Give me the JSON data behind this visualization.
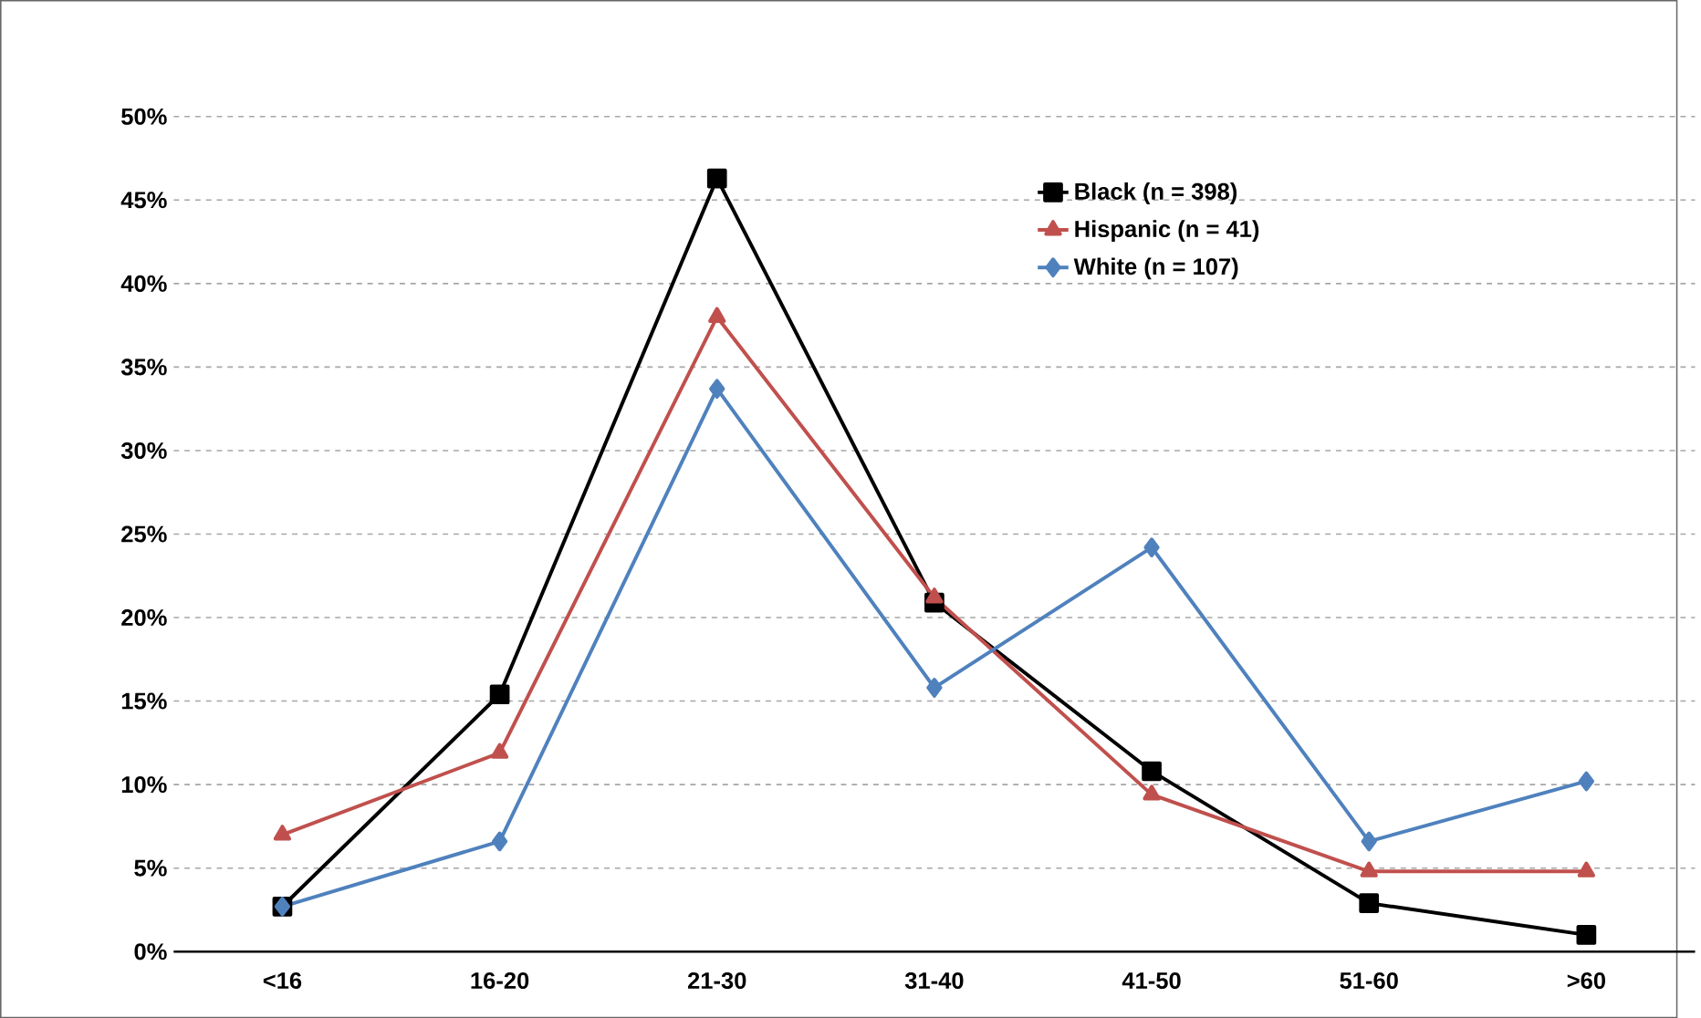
{
  "chart_data": {
    "type": "line",
    "categories": [
      "<16",
      "16-20",
      "21-30",
      "31-40",
      "41-50",
      "51-60",
      ">60"
    ],
    "series": [
      {
        "name": "Black (n = 398)",
        "color": "#000000",
        "marker": "square",
        "values": [
          2.7,
          15.4,
          46.3,
          20.9,
          10.8,
          2.9,
          1.0
        ]
      },
      {
        "name": "Hispanic (n = 41)",
        "color": "#c0504d",
        "marker": "triangle",
        "values": [
          7.0,
          11.9,
          38.0,
          21.2,
          9.4,
          4.8,
          4.8
        ]
      },
      {
        "name": "White (n = 107)",
        "color": "#4f81bd",
        "marker": "diamond",
        "values": [
          2.7,
          6.6,
          33.7,
          15.8,
          24.2,
          6.6,
          10.2
        ]
      }
    ],
    "ylim": [
      0,
      50
    ],
    "yticks": [
      {
        "value": 0,
        "label": "0%"
      },
      {
        "value": 5,
        "label": "5%"
      },
      {
        "value": 10,
        "label": "10%"
      },
      {
        "value": 15,
        "label": "15%"
      },
      {
        "value": 20,
        "label": "20%"
      },
      {
        "value": 25,
        "label": "25%"
      },
      {
        "value": 30,
        "label": "30%"
      },
      {
        "value": 35,
        "label": "35%"
      },
      {
        "value": 40,
        "label": "40%"
      },
      {
        "value": 45,
        "label": "45%"
      },
      {
        "value": 50,
        "label": "50%"
      }
    ],
    "grid": "y",
    "legend": "top right",
    "line_style": "solid"
  }
}
